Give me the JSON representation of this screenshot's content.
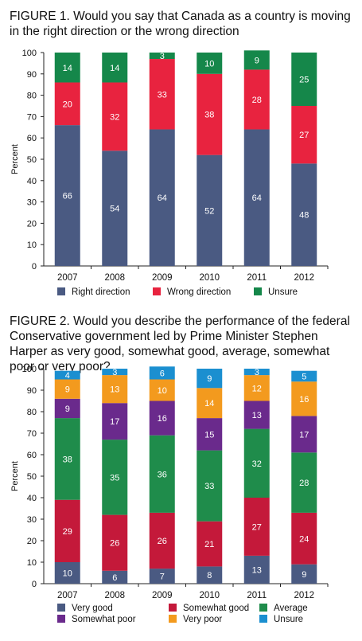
{
  "charts": [
    {
      "id": "fig1",
      "title": "FIGURE 1. Would you say that Canada as a country is moving in the right direction or the wrong direction",
      "ylabel": "Percent",
      "colors": {
        "Right direction": "#4a5a82",
        "Wrong direction": "#e8233f",
        "Unsure": "#15874a"
      }
    },
    {
      "id": "fig2",
      "title": "FIGURE 2. Would you describe the performance of the federal Conservative government led by Prime Minister Stephen Harper as very good, somewhat good, average, somewhat poor or very poor?",
      "ylabel": "Percent",
      "colors": {
        "Very good": "#4a5a82",
        "Somewhat good": "#c4193a",
        "Average": "#1f8c4b",
        "Somewhat poor": "#6a2a8c",
        "Very poor": "#f39a1e",
        "Unsure": "#1b8fd0"
      }
    }
  ],
  "chart_data": [
    {
      "type": "bar",
      "stacked": true,
      "title": "FIGURE 1. Would you say that Canada as a country is moving in the right direction or the wrong direction",
      "xlabel": "",
      "ylabel": "Percent",
      "ylim": [
        0,
        100
      ],
      "yticks": [
        0,
        10,
        20,
        30,
        40,
        50,
        60,
        70,
        80,
        90,
        100
      ],
      "grid": false,
      "legend": "bottom",
      "categories": [
        "2007",
        "2008",
        "2009",
        "2010",
        "2011",
        "2012"
      ],
      "series": [
        {
          "name": "Right direction",
          "values": [
            66,
            54,
            64,
            52,
            64,
            48
          ]
        },
        {
          "name": "Wrong direction",
          "values": [
            20,
            32,
            33,
            38,
            28,
            27
          ]
        },
        {
          "name": "Unsure",
          "values": [
            14,
            14,
            3,
            10,
            9,
            25
          ]
        }
      ]
    },
    {
      "type": "bar",
      "stacked": true,
      "title": "FIGURE 2. Would you describe the performance of the federal Conservative government led by Prime Minister Stephen Harper as very good, somewhat good, average, somewhat poor or very poor?",
      "xlabel": "",
      "ylabel": "Percent",
      "ylim": [
        0,
        100
      ],
      "yticks": [
        0,
        10,
        20,
        30,
        40,
        50,
        60,
        70,
        80,
        90,
        100
      ],
      "grid": false,
      "legend": "bottom",
      "categories": [
        "2007",
        "2008",
        "2009",
        "2010",
        "2011",
        "2012"
      ],
      "series": [
        {
          "name": "Very good",
          "values": [
            10,
            6,
            7,
            8,
            13,
            9
          ]
        },
        {
          "name": "Somewhat good",
          "values": [
            29,
            26,
            26,
            21,
            27,
            24
          ]
        },
        {
          "name": "Average",
          "values": [
            38,
            35,
            36,
            33,
            32,
            28
          ]
        },
        {
          "name": "Somewhat poor",
          "values": [
            9,
            17,
            16,
            15,
            13,
            17
          ]
        },
        {
          "name": "Very poor",
          "values": [
            9,
            13,
            10,
            14,
            12,
            16
          ]
        },
        {
          "name": "Unsure",
          "values": [
            4,
            3,
            6,
            9,
            3,
            5
          ]
        }
      ]
    }
  ]
}
